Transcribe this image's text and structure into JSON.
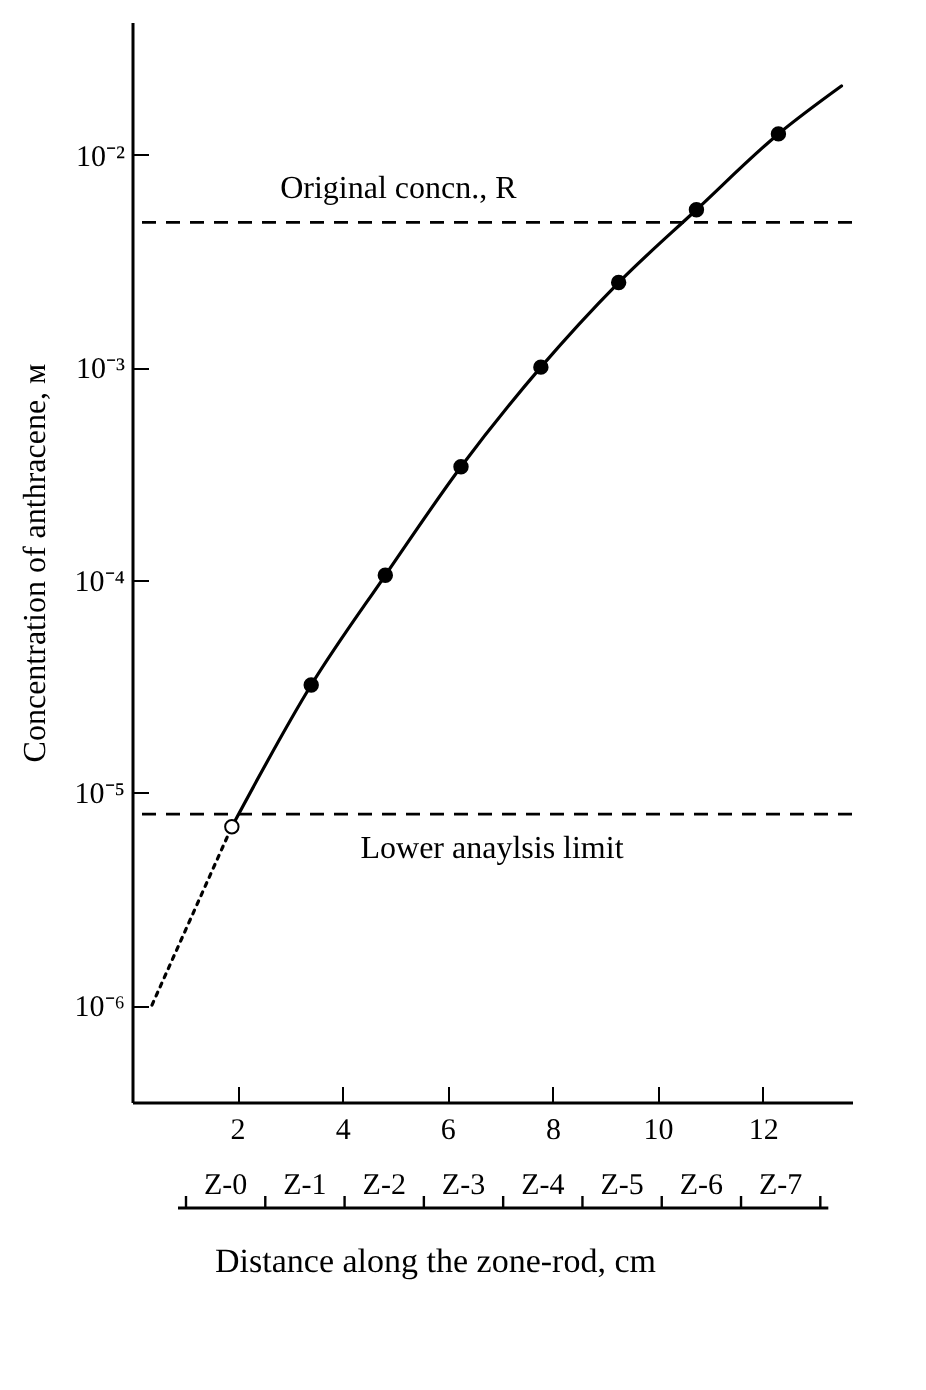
{
  "chart_data": {
    "type": "line",
    "xlabel": "Distance along the zone-rod, cm",
    "ylabel": "Concentration of anthracene, ᴍ",
    "log": "y",
    "grid": false,
    "marker": "none",
    "line_style": "solid",
    "xlim": [
      0,
      13.7
    ],
    "xticks": [
      2,
      4,
      6,
      8,
      10,
      12
    ],
    "ylim": [
      3.5e-07,
      0.042
    ],
    "yticks": [
      {
        "value": 1e-06,
        "label": "10⁻⁶"
      },
      {
        "value": 1e-05,
        "label": "10⁻⁵"
      },
      {
        "value": 0.0001,
        "label": "10⁻⁴"
      },
      {
        "value": 0.001,
        "label": "10⁻³"
      },
      {
        "value": 0.01,
        "label": "10⁻²"
      }
    ],
    "annotations": [
      "Z-0",
      "Z-1",
      "Z-2",
      "Z-3",
      "Z-4",
      "Z-5",
      "Z-6",
      "Z-7"
    ],
    "series": [
      {
        "color": "#000000",
        "x": [
          1.9,
          3.41,
          4.82,
          6.26,
          7.78,
          9.26,
          10.74,
          12.3,
          13.5
        ],
        "values": [
          6.9e-06,
          3.2e-05,
          0.000105,
          0.00034,
          0.001,
          0.0025,
          0.0055,
          0.0125,
          0.021
        ]
      },
      {
        "color": "#000000",
        "line_style": "dotted",
        "x": [
          0.38,
          1.9
        ],
        "values": [
          1e-06,
          6.9e-06
        ]
      },
      {
        "type": "scatter",
        "marker": "circle",
        "color": "#000000",
        "x": [
          3.41,
          4.82,
          6.26,
          7.78,
          9.26,
          10.74,
          12.3
        ],
        "values": [
          3.2e-05,
          0.000105,
          0.00034,
          0.001,
          0.0025,
          0.0055,
          0.0125
        ]
      },
      {
        "type": "scatter",
        "marker": "circle",
        "color": "#ffffff",
        "x": [
          1.9
        ],
        "values": [
          6.9e-06
        ]
      }
    ],
    "ref_lines": [
      {
        "axis": "y",
        "value": 0.0048,
        "label": "Original concn., R",
        "line_style": "dashed"
      },
      {
        "axis": "y",
        "value": 7.9e-06,
        "label": "Lower anaylsis limit",
        "line_style": "dashed"
      }
    ]
  }
}
